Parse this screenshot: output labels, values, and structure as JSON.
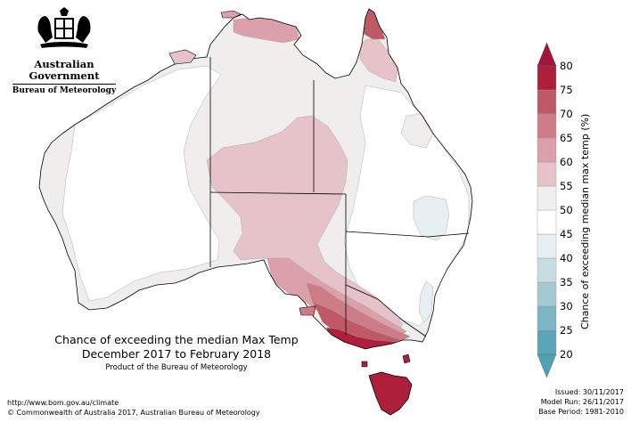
{
  "header": {
    "government": "Australian Government",
    "bureau": "Bureau of Meteorology"
  },
  "title": {
    "line1": "Chance of exceeding the median Max Temp",
    "line2": "December 2017 to February 2018",
    "line3": "Product of the Bureau of Meteorology"
  },
  "footer": {
    "url": "http://www.bom.gov.au/climate",
    "copyright": "© Commonwealth of Australia 2017, Australian Bureau of Meteorology"
  },
  "issue": {
    "issued": "Issued: 30/11/2017",
    "model_run": "Model Run: 26/11/2017",
    "base_period": "Base Period: 1981-2010"
  },
  "legend": {
    "title": "Chance of exceeding median max temp (%)",
    "ticks": [
      "20",
      "25",
      "30",
      "35",
      "40",
      "45",
      "50",
      "55",
      "60",
      "65",
      "70",
      "75",
      "80"
    ],
    "colors": [
      "#5ba5b8",
      "#7eb5c4",
      "#a3c9d2",
      "#c6dde1",
      "#e6eff1",
      "#ffffff",
      "#efefef",
      "#e5c3c8",
      "#dba0aa",
      "#cf7c89",
      "#c05966",
      "#ad1f3b"
    ]
  }
}
